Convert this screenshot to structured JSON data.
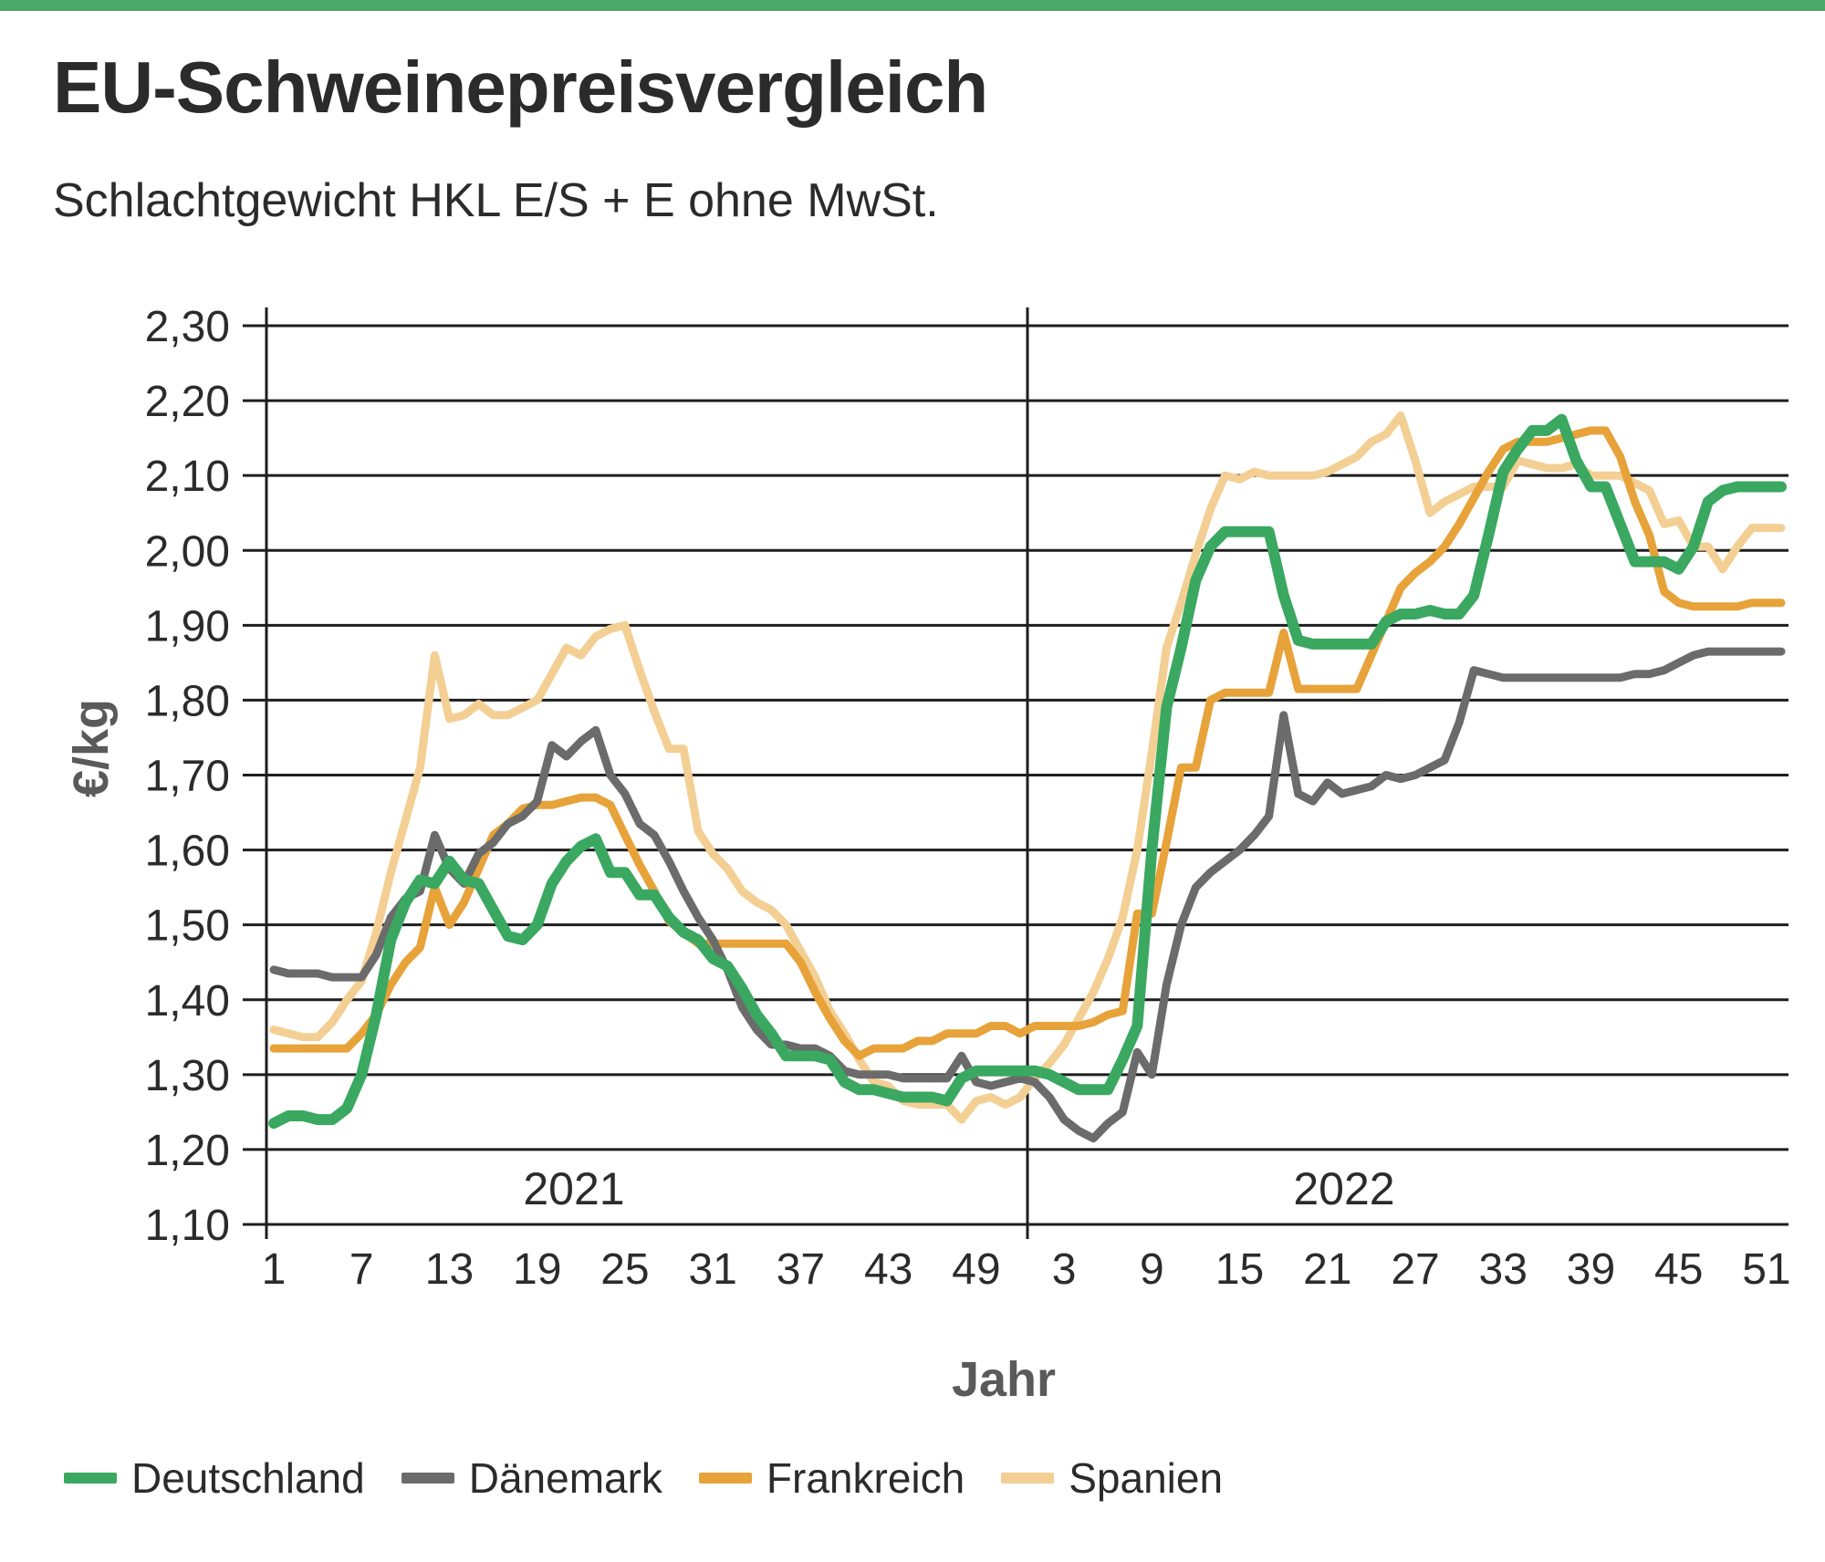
{
  "title": "EU-Schweinepreisvergleich",
  "subtitle": "Schlachtgewicht HKL E/S + E ohne MwSt.",
  "colors": {
    "accent_bar": "#4aa868",
    "deutschland": "#3aa860",
    "daenemark": "#6b6b6b",
    "frankreich": "#e7a23a",
    "spanien": "#f3cf94"
  },
  "chart_data": {
    "type": "line",
    "ylabel": "€/kg",
    "xlabel": "Jahr",
    "ylim": [
      1.1,
      2.3
    ],
    "yticks": [
      "2,30",
      "2,20",
      "2,10",
      "2,00",
      "1,90",
      "1,80",
      "1,70",
      "1,60",
      "1,50",
      "1,40",
      "1,30",
      "1,20",
      "1,10"
    ],
    "ytick_values": [
      2.3,
      2.2,
      2.1,
      2.0,
      1.9,
      1.8,
      1.7,
      1.6,
      1.5,
      1.4,
      1.3,
      1.2,
      1.1
    ],
    "x_weeks_per_year": 52,
    "years": [
      "2021",
      "2022"
    ],
    "xticks": [
      {
        "label": "1",
        "year": 0,
        "week": 1
      },
      {
        "label": "7",
        "year": 0,
        "week": 7
      },
      {
        "label": "13",
        "year": 0,
        "week": 13
      },
      {
        "label": "19",
        "year": 0,
        "week": 19
      },
      {
        "label": "25",
        "year": 0,
        "week": 25
      },
      {
        "label": "31",
        "year": 0,
        "week": 31
      },
      {
        "label": "37",
        "year": 0,
        "week": 37
      },
      {
        "label": "43",
        "year": 0,
        "week": 43
      },
      {
        "label": "49",
        "year": 0,
        "week": 49
      },
      {
        "label": "3",
        "year": 1,
        "week": 3
      },
      {
        "label": "9",
        "year": 1,
        "week": 9
      },
      {
        "label": "15",
        "year": 1,
        "week": 15
      },
      {
        "label": "21",
        "year": 1,
        "week": 21
      },
      {
        "label": "27",
        "year": 1,
        "week": 27
      },
      {
        "label": "33",
        "year": 1,
        "week": 33
      },
      {
        "label": "39",
        "year": 1,
        "week": 39
      },
      {
        "label": "45",
        "year": 1,
        "week": 45
      },
      {
        "label": "51",
        "year": 1,
        "week": 51
      }
    ],
    "grid": true,
    "legend_position": "bottom",
    "series": [
      {
        "name": "Deutschland",
        "color": "#3aa860",
        "x": [
          1,
          2,
          3,
          4,
          5,
          6,
          7,
          8,
          9,
          10,
          11,
          12,
          13,
          14,
          15,
          16,
          17,
          18,
          19,
          20,
          21,
          22,
          23,
          24,
          25,
          26,
          27,
          28,
          29,
          30,
          31,
          32,
          33,
          34,
          35,
          36,
          37,
          38,
          39,
          40,
          41,
          42,
          43,
          44,
          45,
          46,
          47,
          48,
          49,
          50,
          51,
          52,
          53,
          54,
          55,
          56,
          57,
          58,
          59,
          60,
          61,
          62,
          63,
          64,
          65,
          66,
          67,
          68,
          69,
          70,
          71,
          72,
          73,
          74,
          75,
          76,
          77,
          78,
          79,
          80,
          81,
          82,
          83,
          84,
          85,
          86,
          87,
          88,
          89,
          90,
          91,
          92,
          93,
          94,
          95,
          96,
          97,
          98,
          99,
          100,
          101,
          102,
          103,
          104
        ],
        "y": [
          1.235,
          1.245,
          1.245,
          1.24,
          1.24,
          1.255,
          1.3,
          1.38,
          1.48,
          1.53,
          1.56,
          1.555,
          1.585,
          1.56,
          1.555,
          1.52,
          1.485,
          1.48,
          1.5,
          1.555,
          1.585,
          1.605,
          1.615,
          1.57,
          1.57,
          1.54,
          1.54,
          1.51,
          1.49,
          1.48,
          1.455,
          1.445,
          1.415,
          1.38,
          1.355,
          1.325,
          1.325,
          1.325,
          1.32,
          1.29,
          1.28,
          1.28,
          1.275,
          1.27,
          1.27,
          1.27,
          1.265,
          1.295,
          1.305,
          1.305,
          1.305,
          1.305,
          1.305,
          1.3,
          1.29,
          1.28,
          1.28,
          1.28,
          1.32,
          1.365,
          1.6,
          1.79,
          1.87,
          1.96,
          2.005,
          2.025,
          2.025,
          2.025,
          2.025,
          1.94,
          1.88,
          1.875,
          1.875,
          1.875,
          1.875,
          1.875,
          1.905,
          1.915,
          1.915,
          1.92,
          1.915,
          1.915,
          1.94,
          2.02,
          2.105,
          2.135,
          2.16,
          2.16,
          2.175,
          2.12,
          2.085,
          2.085,
          2.035,
          1.985,
          1.985,
          1.985,
          1.975,
          2.005,
          2.065,
          2.08,
          2.085,
          2.085,
          2.085,
          2.085
        ]
      },
      {
        "name": "Dänemark",
        "color": "#6b6b6b",
        "x": [
          1,
          2,
          3,
          4,
          5,
          6,
          7,
          8,
          9,
          10,
          11,
          12,
          13,
          14,
          15,
          16,
          17,
          18,
          19,
          20,
          21,
          22,
          23,
          24,
          25,
          26,
          27,
          28,
          29,
          30,
          31,
          32,
          33,
          34,
          35,
          36,
          37,
          38,
          39,
          40,
          41,
          42,
          43,
          44,
          45,
          46,
          47,
          48,
          49,
          50,
          51,
          52,
          53,
          54,
          55,
          56,
          57,
          58,
          59,
          60,
          61,
          62,
          63,
          64,
          65,
          66,
          67,
          68,
          69,
          70,
          71,
          72,
          73,
          74,
          75,
          76,
          77,
          78,
          79,
          80,
          81,
          82,
          83,
          84,
          85,
          86,
          87,
          88,
          89,
          90,
          91,
          92,
          93,
          94,
          95,
          96,
          97,
          98,
          99,
          100,
          101,
          102,
          103,
          104
        ],
        "y": [
          1.44,
          1.435,
          1.435,
          1.435,
          1.43,
          1.43,
          1.43,
          1.46,
          1.51,
          1.535,
          1.545,
          1.62,
          1.575,
          1.555,
          1.595,
          1.61,
          1.635,
          1.645,
          1.665,
          1.74,
          1.725,
          1.745,
          1.76,
          1.7,
          1.675,
          1.635,
          1.62,
          1.585,
          1.545,
          1.51,
          1.48,
          1.44,
          1.39,
          1.36,
          1.34,
          1.34,
          1.335,
          1.335,
          1.325,
          1.305,
          1.3,
          1.3,
          1.3,
          1.295,
          1.295,
          1.295,
          1.295,
          1.325,
          1.29,
          1.285,
          1.29,
          1.295,
          1.29,
          1.27,
          1.24,
          1.225,
          1.215,
          1.235,
          1.25,
          1.33,
          1.3,
          1.42,
          1.5,
          1.55,
          1.57,
          1.585,
          1.6,
          1.62,
          1.645,
          1.78,
          1.675,
          1.665,
          1.69,
          1.675,
          1.68,
          1.685,
          1.7,
          1.695,
          1.7,
          1.71,
          1.72,
          1.77,
          1.84,
          1.835,
          1.83,
          1.83,
          1.83,
          1.83,
          1.83,
          1.83,
          1.83,
          1.83,
          1.83,
          1.835,
          1.835,
          1.84,
          1.85,
          1.86,
          1.865,
          1.865,
          1.865,
          1.865,
          1.865,
          1.865
        ]
      },
      {
        "name": "Frankreich",
        "color": "#e7a23a",
        "x": [
          1,
          2,
          3,
          4,
          5,
          6,
          7,
          8,
          9,
          10,
          11,
          12,
          13,
          14,
          15,
          16,
          17,
          18,
          19,
          20,
          21,
          22,
          23,
          24,
          25,
          26,
          27,
          28,
          29,
          30,
          31,
          32,
          33,
          34,
          35,
          36,
          37,
          38,
          39,
          40,
          41,
          42,
          43,
          44,
          45,
          46,
          47,
          48,
          49,
          50,
          51,
          52,
          53,
          54,
          55,
          56,
          57,
          58,
          59,
          60,
          61,
          62,
          63,
          64,
          65,
          66,
          67,
          68,
          69,
          70,
          71,
          72,
          73,
          74,
          75,
          76,
          77,
          78,
          79,
          80,
          81,
          82,
          83,
          84,
          85,
          86,
          87,
          88,
          89,
          90,
          91,
          92,
          93,
          94,
          95,
          96,
          97,
          98,
          99,
          100,
          101,
          102,
          103,
          104
        ],
        "y": [
          1.335,
          1.335,
          1.335,
          1.335,
          1.335,
          1.335,
          1.355,
          1.38,
          1.42,
          1.45,
          1.47,
          1.55,
          1.5,
          1.53,
          1.575,
          1.62,
          1.635,
          1.655,
          1.66,
          1.66,
          1.665,
          1.67,
          1.67,
          1.66,
          1.62,
          1.58,
          1.545,
          1.505,
          1.49,
          1.475,
          1.475,
          1.475,
          1.475,
          1.475,
          1.475,
          1.475,
          1.45,
          1.41,
          1.375,
          1.345,
          1.325,
          1.335,
          1.335,
          1.335,
          1.345,
          1.345,
          1.355,
          1.355,
          1.355,
          1.365,
          1.365,
          1.355,
          1.365,
          1.365,
          1.365,
          1.365,
          1.37,
          1.38,
          1.385,
          1.515,
          1.515,
          1.61,
          1.71,
          1.71,
          1.8,
          1.81,
          1.81,
          1.81,
          1.81,
          1.89,
          1.815,
          1.815,
          1.815,
          1.815,
          1.815,
          1.86,
          1.905,
          1.95,
          1.97,
          1.985,
          2.005,
          2.035,
          2.07,
          2.105,
          2.135,
          2.145,
          2.145,
          2.145,
          2.15,
          2.155,
          2.16,
          2.16,
          2.125,
          2.065,
          2.02,
          1.945,
          1.93,
          1.925,
          1.925,
          1.925,
          1.925,
          1.93,
          1.93,
          1.93
        ]
      },
      {
        "name": "Spanien",
        "color": "#f3cf94",
        "x": [
          1,
          2,
          3,
          4,
          5,
          6,
          7,
          8,
          9,
          10,
          11,
          12,
          13,
          14,
          15,
          16,
          17,
          18,
          19,
          20,
          21,
          22,
          23,
          24,
          25,
          26,
          27,
          28,
          29,
          30,
          31,
          32,
          33,
          34,
          35,
          36,
          37,
          38,
          39,
          40,
          41,
          42,
          43,
          44,
          45,
          46,
          47,
          48,
          49,
          50,
          51,
          52,
          53,
          54,
          55,
          56,
          57,
          58,
          59,
          60,
          61,
          62,
          63,
          64,
          65,
          66,
          67,
          68,
          69,
          70,
          71,
          72,
          73,
          74,
          75,
          76,
          77,
          78,
          79,
          80,
          81,
          82,
          83,
          84,
          85,
          86,
          87,
          88,
          89,
          90,
          91,
          92,
          93,
          94,
          95,
          96,
          97,
          98,
          99,
          100,
          101,
          102,
          103,
          104
        ],
        "y": [
          1.36,
          1.355,
          1.35,
          1.35,
          1.37,
          1.4,
          1.425,
          1.49,
          1.57,
          1.64,
          1.71,
          1.86,
          1.775,
          1.78,
          1.795,
          1.78,
          1.78,
          1.79,
          1.8,
          1.835,
          1.87,
          1.86,
          1.885,
          1.895,
          1.9,
          1.84,
          1.785,
          1.735,
          1.735,
          1.625,
          1.595,
          1.575,
          1.545,
          1.53,
          1.52,
          1.5,
          1.465,
          1.43,
          1.385,
          1.355,
          1.32,
          1.29,
          1.285,
          1.265,
          1.26,
          1.26,
          1.26,
          1.24,
          1.265,
          1.27,
          1.26,
          1.27,
          1.295,
          1.315,
          1.34,
          1.375,
          1.41,
          1.455,
          1.51,
          1.6,
          1.73,
          1.87,
          1.93,
          1.995,
          2.055,
          2.1,
          2.095,
          2.105,
          2.1,
          2.1,
          2.1,
          2.1,
          2.105,
          2.115,
          2.125,
          2.145,
          2.155,
          2.18,
          2.12,
          2.05,
          2.065,
          2.075,
          2.085,
          2.085,
          2.085,
          2.12,
          2.115,
          2.11,
          2.11,
          2.115,
          2.1,
          2.1,
          2.1,
          2.09,
          2.08,
          2.035,
          2.04,
          2.005,
          2.005,
          1.975,
          2.005,
          2.03,
          2.03,
          2.03
        ]
      }
    ]
  }
}
